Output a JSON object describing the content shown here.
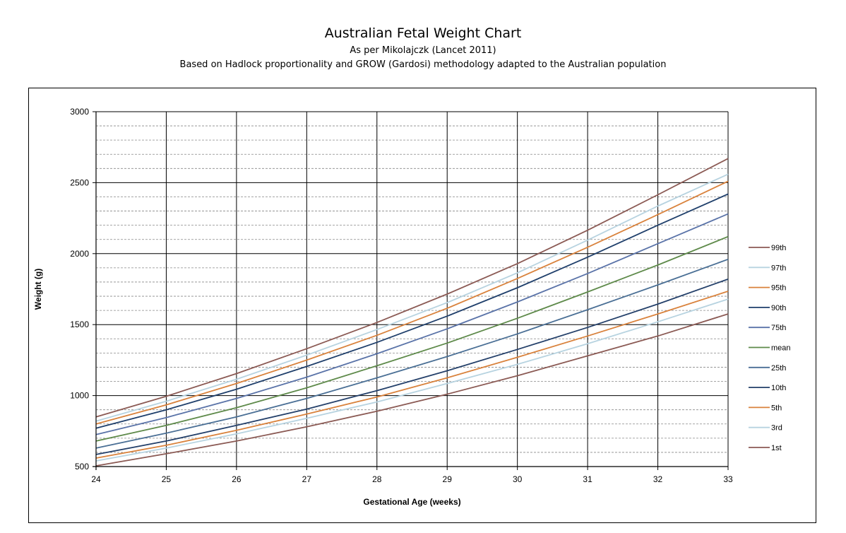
{
  "chart_data": {
    "type": "line",
    "title": "Australian Fetal Weight Chart",
    "subtitle": "As per Mikolajczk (Lancet 2011)",
    "subtitle2": "Based on Hadlock proportionality and GROW (Gardosi) methodology adapted to the Australian population",
    "xlabel": "Gestational Age (weeks)",
    "ylabel": "Weight (g)",
    "xlim": [
      24,
      33
    ],
    "ylim": [
      500,
      3000
    ],
    "xticks": [
      24,
      25,
      26,
      27,
      28,
      29,
      30,
      31,
      32,
      33
    ],
    "yticks": [
      500,
      1000,
      1500,
      2000,
      2500,
      3000
    ],
    "minor_y_step": 100,
    "grid": true,
    "legend_position": "right",
    "x": [
      24,
      25,
      26,
      27,
      28,
      29,
      30,
      31,
      32,
      33
    ],
    "series": [
      {
        "name": "99th",
        "color": "#8B5A54",
        "values": [
          850,
          995,
          1155,
          1330,
          1515,
          1715,
          1930,
          2165,
          2415,
          2670
        ]
      },
      {
        "name": "97th",
        "color": "#B7D3E0",
        "values": [
          820,
          960,
          1115,
          1285,
          1465,
          1655,
          1865,
          2095,
          2335,
          2560
        ]
      },
      {
        "name": "95th",
        "color": "#D9823C",
        "values": [
          800,
          935,
          1085,
          1250,
          1425,
          1615,
          1825,
          2045,
          2275,
          2510
        ]
      },
      {
        "name": "90th",
        "color": "#1F3F6B",
        "values": [
          770,
          900,
          1045,
          1205,
          1375,
          1560,
          1760,
          1975,
          2200,
          2420
        ]
      },
      {
        "name": "75th",
        "color": "#5A73A8",
        "values": [
          725,
          845,
          980,
          1130,
          1295,
          1470,
          1660,
          1860,
          2070,
          2280
        ]
      },
      {
        "name": "mean",
        "color": "#5E8A4A",
        "values": [
          680,
          790,
          915,
          1055,
          1210,
          1370,
          1545,
          1730,
          1920,
          2120
        ]
      },
      {
        "name": "25th",
        "color": "#4A6F95",
        "values": [
          630,
          735,
          850,
          980,
          1125,
          1275,
          1435,
          1605,
          1780,
          1960
        ]
      },
      {
        "name": "10th",
        "color": "#24406A",
        "values": [
          585,
          680,
          790,
          905,
          1035,
          1175,
          1325,
          1480,
          1645,
          1820
        ]
      },
      {
        "name": "5th",
        "color": "#D9823C",
        "values": [
          560,
          650,
          755,
          870,
          990,
          1125,
          1270,
          1420,
          1575,
          1735
        ]
      },
      {
        "name": "3rd",
        "color": "#B7D3E0",
        "values": [
          540,
          630,
          730,
          840,
          955,
          1085,
          1220,
          1365,
          1520,
          1680
        ]
      },
      {
        "name": "1st",
        "color": "#8B5A54",
        "values": [
          505,
          590,
          680,
          780,
          890,
          1010,
          1140,
          1280,
          1420,
          1575
        ]
      }
    ]
  }
}
